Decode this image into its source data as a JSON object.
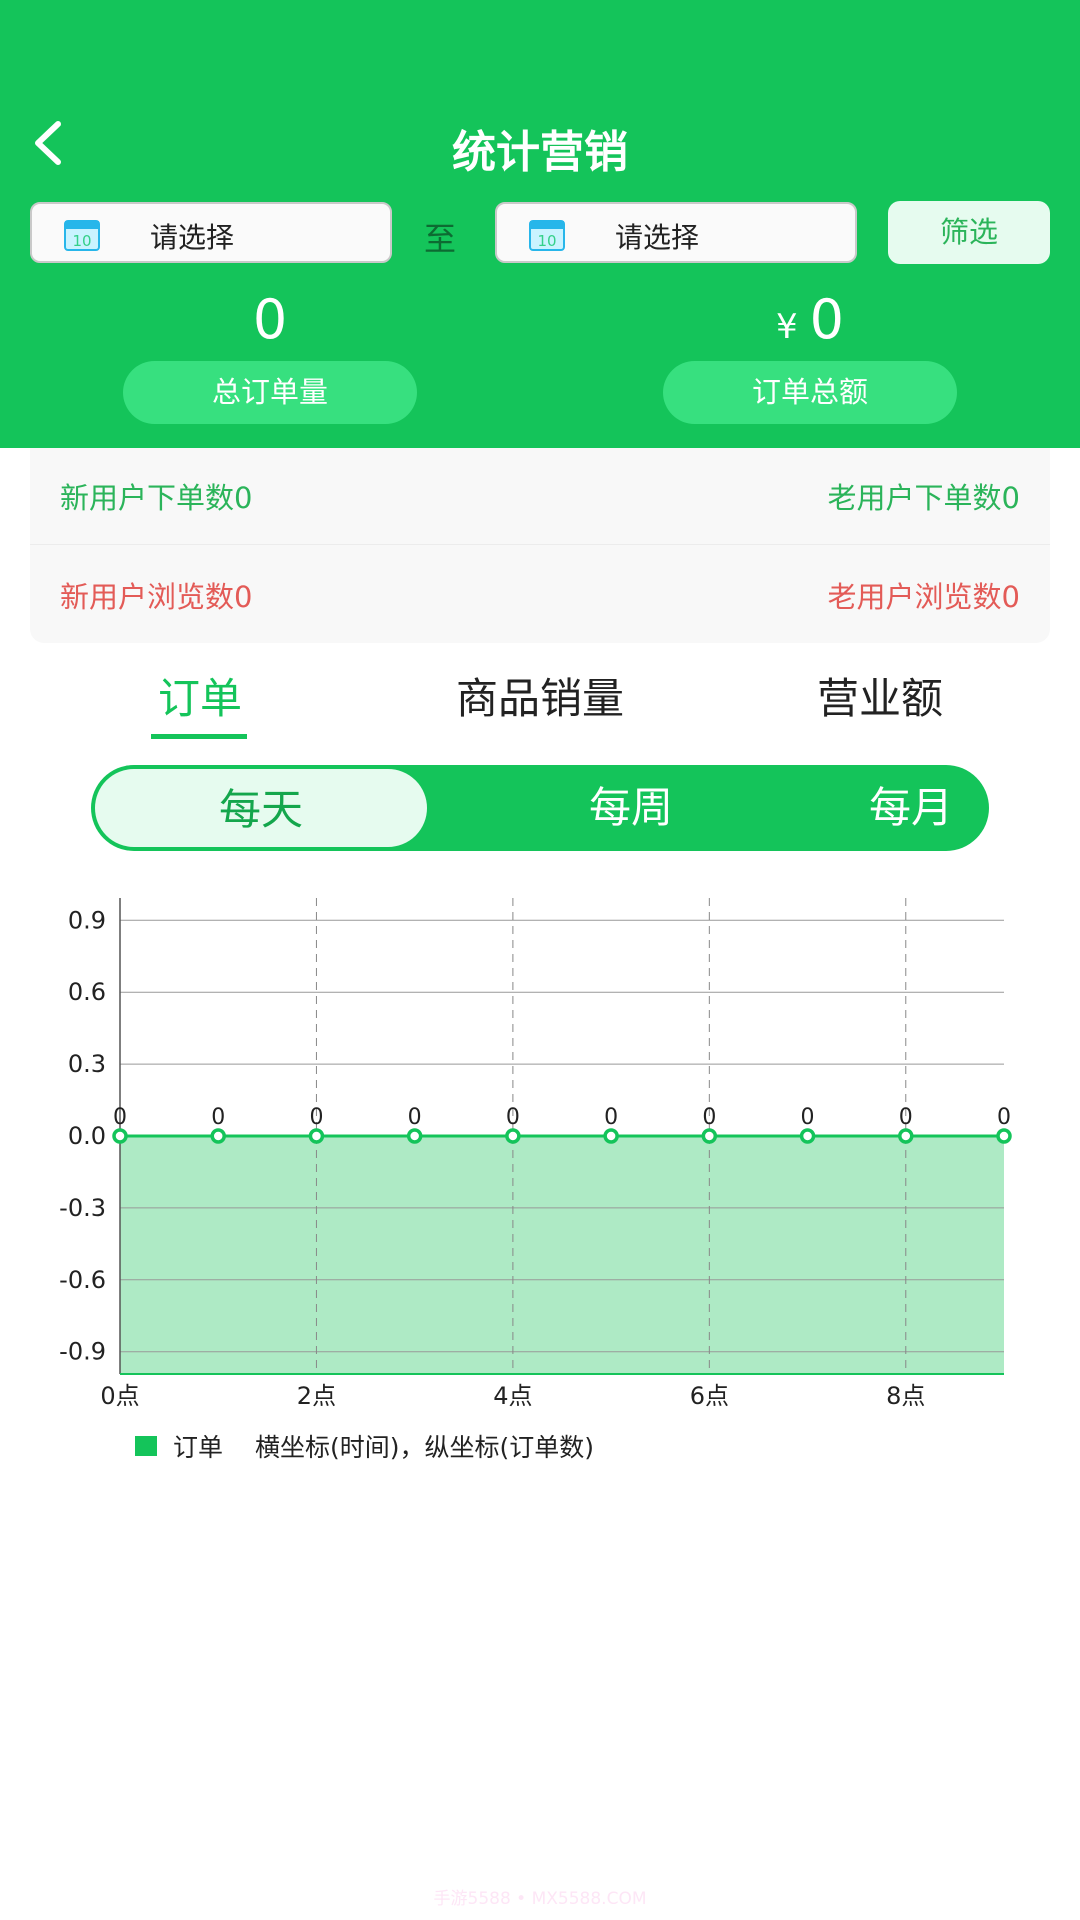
{
  "header": {
    "title": "统计营销",
    "back_icon": "chevron-left-icon",
    "start_date_placeholder": "请选择",
    "to_label": "至",
    "end_date_placeholder": "请选择",
    "filter_label": "筛选",
    "total_orders_value": "0",
    "total_orders_label": "总订单量",
    "currency_symbol": "¥",
    "total_amount_value": "0",
    "total_amount_label": "订单总额",
    "brand_color": "#14c45a"
  },
  "stats": {
    "new_user_orders": "新用户下单数0",
    "old_user_orders": "老用户下单数0",
    "new_user_views": "新用户浏览数0",
    "old_user_views": "老用户浏览数0"
  },
  "tabs": [
    {
      "label": "订单",
      "active": true
    },
    {
      "label": "商品销量",
      "active": false
    },
    {
      "label": "营业额",
      "active": false
    }
  ],
  "periods": [
    {
      "label": "每天",
      "active": true
    },
    {
      "label": "每周",
      "active": false
    },
    {
      "label": "每月",
      "active": false
    }
  ],
  "chart_data": {
    "type": "area",
    "x": [
      0,
      1,
      2,
      3,
      4,
      5,
      6,
      7,
      8,
      9
    ],
    "xtick_labels": [
      "0点",
      "2点",
      "4点",
      "6点",
      "8点"
    ],
    "xtick_values": [
      0,
      2,
      4,
      6,
      8
    ],
    "series": [
      {
        "name": "订单",
        "values": [
          0,
          0,
          0,
          0,
          0,
          0,
          0,
          0,
          0,
          0
        ],
        "color": "#14c45a"
      }
    ],
    "ylim": [
      -1,
      1
    ],
    "yticks": [
      "0.9",
      "0.6",
      "0.3",
      "0.0",
      "-0.3",
      "-0.6",
      "-0.9"
    ],
    "ytick_values": [
      0.9,
      0.6,
      0.3,
      0,
      -0.3,
      -0.6,
      -0.9
    ],
    "grid": true,
    "legend_position": "bottom-left",
    "legend_note": "横坐标(时间)，纵坐标(订单数)"
  },
  "watermark": "手游5588 • MX5588.COM"
}
